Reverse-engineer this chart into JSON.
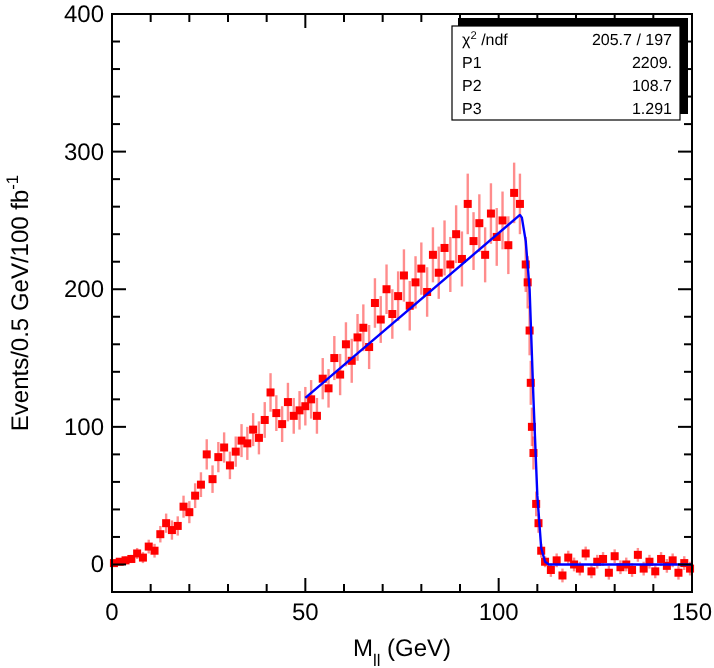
{
  "chart_data": {
    "type": "scatter",
    "xlabel": "M$_{ll}$ (GeV)",
    "ylabel": "Events/0.5 GeV/100 fb$^{-1}$",
    "xlim": [
      0,
      150
    ],
    "ylim": [
      -20,
      400
    ],
    "xticks": [
      0,
      {
        "value": 10,
        "label": null
      },
      {
        "value": 20,
        "label": null
      },
      {
        "value": 30,
        "label": null
      },
      {
        "value": 40,
        "label": null
      },
      50,
      {
        "value": 60,
        "label": null
      },
      {
        "value": 70,
        "label": null
      },
      {
        "value": 80,
        "label": null
      },
      {
        "value": 90,
        "label": null
      },
      100,
      {
        "value": 110,
        "label": null
      },
      {
        "value": 120,
        "label": null
      },
      {
        "value": 130,
        "label": null
      },
      {
        "value": 140,
        "label": null
      },
      150
    ],
    "yticks": [
      {
        "value": -20,
        "label": null
      },
      0,
      {
        "value": 20,
        "label": null
      },
      {
        "value": 40,
        "label": null
      },
      {
        "value": 60,
        "label": null
      },
      {
        "value": 80,
        "label": null
      },
      100,
      {
        "value": 120,
        "label": null
      },
      {
        "value": 140,
        "label": null
      },
      {
        "value": 160,
        "label": null
      },
      {
        "value": 180,
        "label": null
      },
      200,
      {
        "value": 220,
        "label": null
      },
      {
        "value": 240,
        "label": null
      },
      {
        "value": 260,
        "label": null
      },
      {
        "value": 280,
        "label": null
      },
      300,
      {
        "value": 320,
        "label": null
      },
      {
        "value": 340,
        "label": null
      },
      {
        "value": 360,
        "label": null
      },
      {
        "value": 380,
        "label": null
      },
      400
    ],
    "grid": false,
    "marker": "square",
    "annotations": [
      "χ$^{2}$/ndf 205.7 / 197",
      "P1 2209.",
      "P2 108.7",
      "P3 1.291"
    ],
    "series": [
      {
        "color": "#ff0000",
        "x": [
          0.5,
          2,
          3.5,
          5,
          6.5,
          8,
          9.5,
          11,
          12.5,
          14,
          15.5,
          17,
          18.5,
          20,
          21.5,
          23,
          24.5,
          26,
          27.5,
          29,
          30.5,
          32,
          33.5,
          35,
          36.5,
          38,
          39.5,
          41,
          42.5,
          44,
          45.5,
          47,
          48.5,
          50,
          51.5,
          53,
          54.5,
          56,
          57.5,
          59,
          60.5,
          62,
          63.5,
          65,
          66.5,
          68,
          69.5,
          71,
          72.5,
          74,
          75.5,
          77,
          78.5,
          80,
          81.5,
          83,
          84.5,
          86,
          87.5,
          89,
          90.5,
          92,
          93.5,
          95,
          96.5,
          98,
          99.5,
          101,
          102.5,
          104,
          105.5,
          107,
          107.5,
          108,
          108.3,
          108.6,
          109,
          109.7,
          110.3,
          111,
          112,
          113.5,
          115,
          116.5,
          118,
          119.5,
          121,
          122.5,
          124,
          125.5,
          127,
          128.5,
          130,
          131.5,
          133,
          134.5,
          136,
          137.5,
          139,
          140.5,
          142,
          143.5,
          145,
          146.5,
          148,
          149.5
        ],
        "values": [
          1,
          2,
          3,
          4,
          8,
          5,
          13,
          10,
          22,
          30,
          25,
          28,
          42,
          38,
          50,
          58,
          80,
          62,
          78,
          85,
          72,
          82,
          90,
          88,
          98,
          92,
          105,
          125,
          110,
          102,
          118,
          108,
          112,
          115,
          120,
          108,
          135,
          128,
          150,
          138,
          160,
          148,
          165,
          172,
          158,
          190,
          178,
          200,
          182,
          195,
          210,
          188,
          205,
          215,
          198,
          225,
          212,
          230,
          218,
          240,
          222,
          262,
          235,
          248,
          225,
          255,
          238,
          250,
          232,
          270,
          262,
          218,
          205,
          170,
          132,
          100,
          81,
          44,
          30,
          10,
          2,
          -4,
          3,
          -8,
          5,
          0,
          -3,
          8,
          -5,
          2,
          4,
          -6,
          6,
          -2,
          0,
          -4,
          7,
          -3,
          2,
          -5,
          4,
          -1,
          3,
          -6,
          1,
          -3
        ],
        "errors": [
          2,
          2,
          3,
          3,
          4,
          4,
          5,
          5,
          6,
          7,
          7,
          7,
          8,
          8,
          9,
          9,
          11,
          10,
          11,
          11,
          10,
          11,
          12,
          12,
          12,
          12,
          13,
          14,
          13,
          13,
          14,
          13,
          14,
          14,
          14,
          13,
          15,
          14,
          16,
          15,
          16,
          16,
          17,
          17,
          16,
          18,
          17,
          18,
          18,
          18,
          19,
          18,
          19,
          19,
          18,
          20,
          19,
          20,
          20,
          21,
          20,
          22,
          21,
          21,
          20,
          22,
          21,
          21,
          21,
          22,
          22,
          20,
          19,
          18,
          16,
          14,
          12,
          9,
          7,
          5,
          4,
          5,
          5,
          5,
          5,
          5,
          5,
          5,
          5,
          5,
          5,
          5,
          5,
          5,
          5,
          5,
          5,
          5,
          5,
          5,
          5,
          5,
          5,
          5,
          5,
          5
        ]
      },
      {
        "type": "line",
        "color": "#0000ff",
        "marker": "none",
        "x": [
          50,
          105.5,
          106,
          107,
          108,
          109,
          110,
          111,
          112,
          113,
          150
        ],
        "values": [
          121,
          254,
          252,
          235,
          200,
          120,
          50,
          12,
          2,
          0,
          0
        ]
      }
    ]
  }
}
